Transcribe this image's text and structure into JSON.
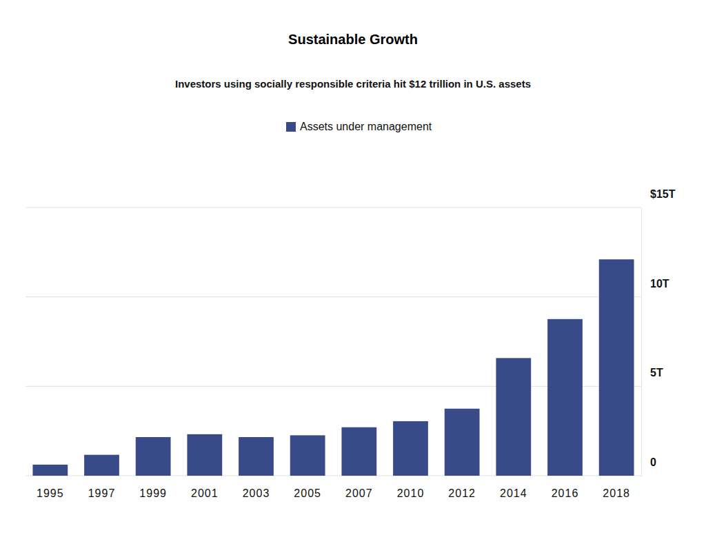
{
  "chart_data": {
    "type": "bar",
    "title": "Sustainable Growth",
    "subtitle": "Investors using socially responsible criteria hit $12 trillion in U.S. assets",
    "categories": [
      "1995",
      "1997",
      "1999",
      "2001",
      "2003",
      "2005",
      "2007",
      "2010",
      "2012",
      "2014",
      "2016",
      "2018"
    ],
    "series": [
      {
        "name": "Assets under management",
        "color": "#394a89",
        "values": [
          0.62,
          1.17,
          2.16,
          2.32,
          2.16,
          2.26,
          2.71,
          3.05,
          3.75,
          6.58,
          8.76,
          12.1
        ]
      }
    ],
    "ylim": [
      0,
      15
    ],
    "yticks": [
      0,
      {
        "value": 5,
        "label": "5T"
      },
      {
        "value": 10,
        "label": "10T"
      },
      {
        "value": 15,
        "label": "$15T"
      }
    ],
    "grid": true,
    "legend": "top"
  }
}
